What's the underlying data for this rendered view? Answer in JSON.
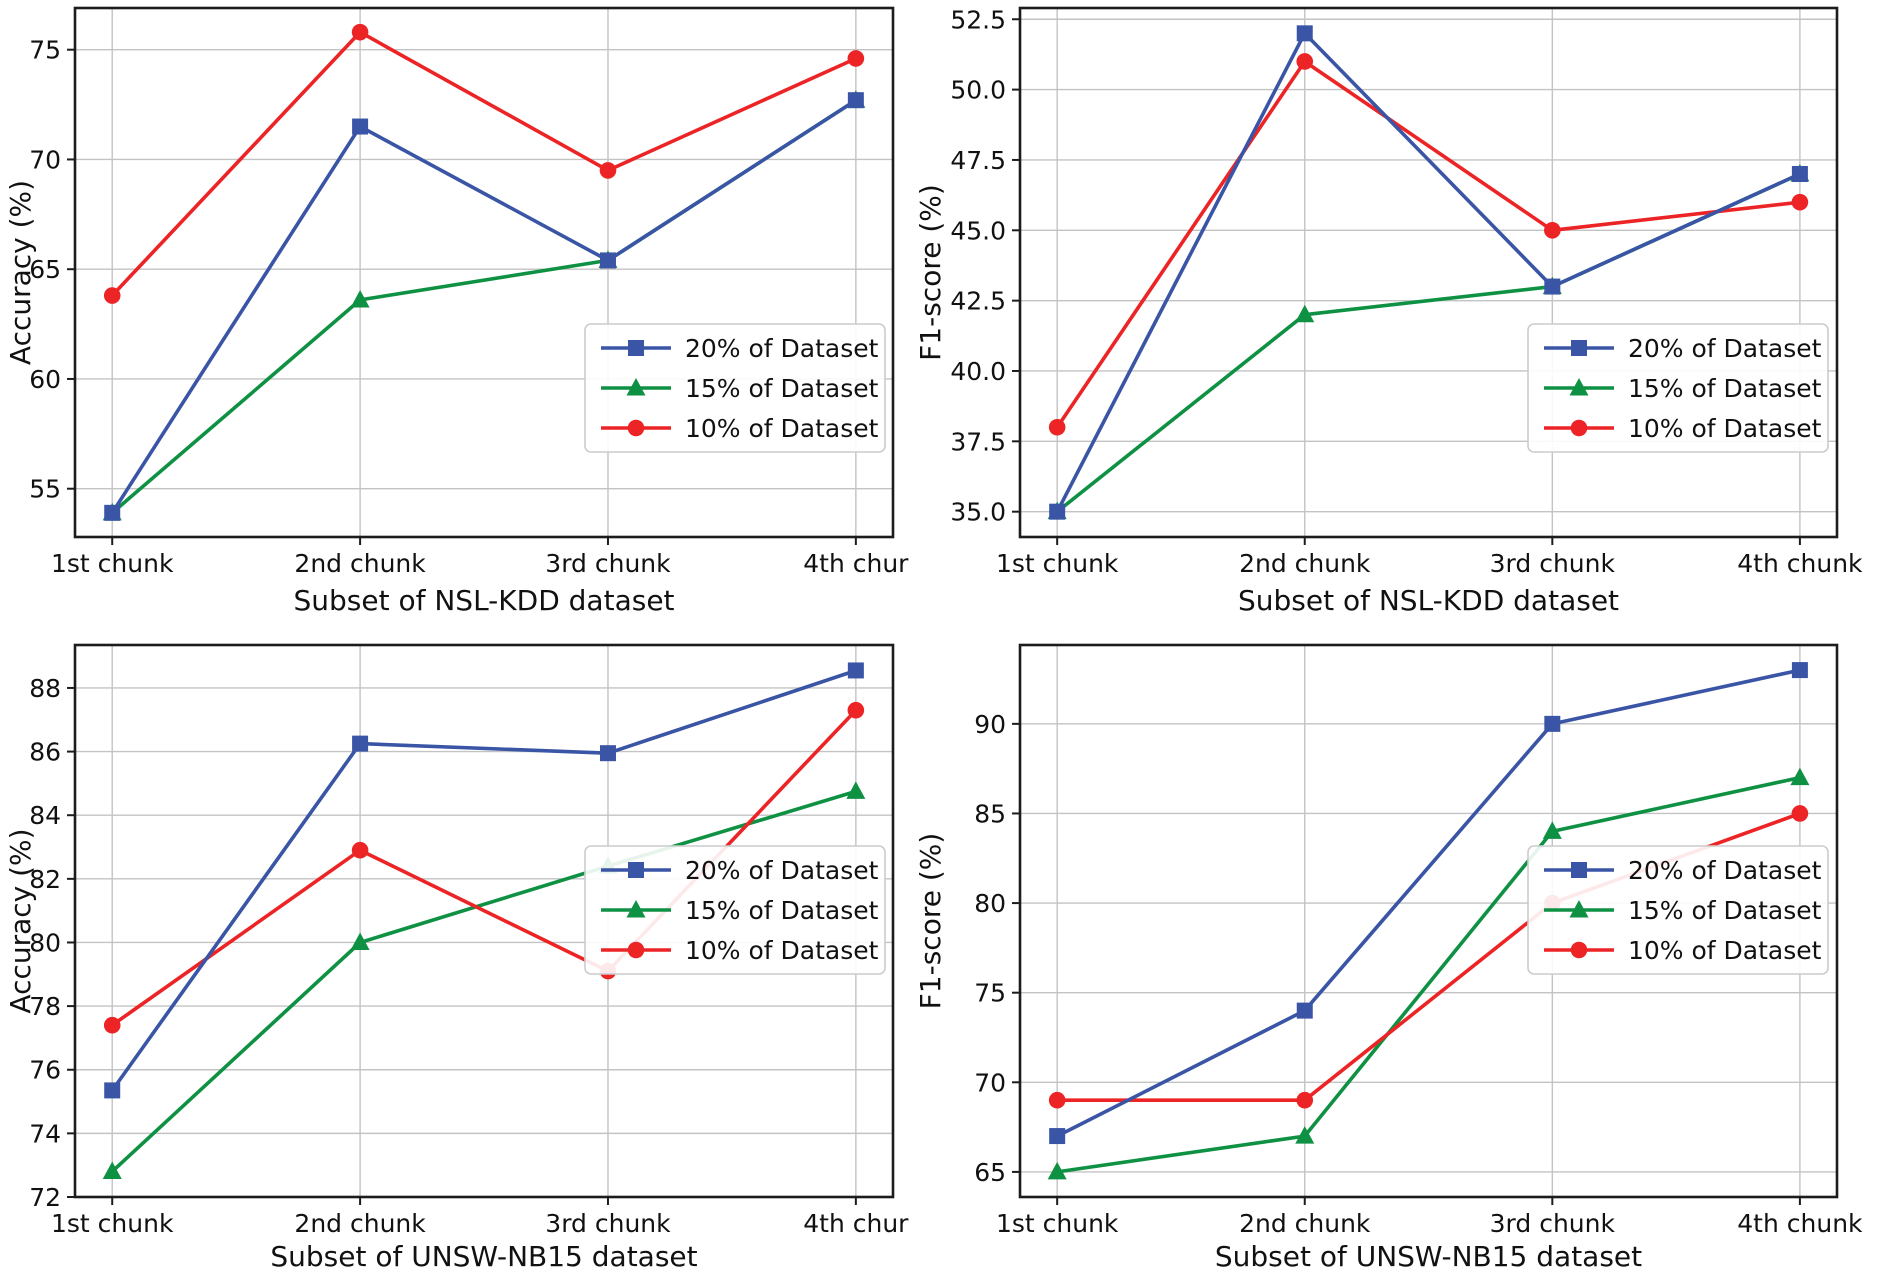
{
  "figure": {
    "background": "#ffffff",
    "text_color": "#111111",
    "grid_color": "#c3c3c3",
    "frame_color": "#1c1c1c"
  },
  "chart_data": [
    {
      "id": "nsl-kdd-accuracy",
      "type": "line",
      "title": "",
      "xlabel": "Subset of NSL-KDD dataset",
      "ylabel": "Accuracy (%)",
      "categories": [
        "1st chunk",
        "2nd chunk",
        "3rd chunk",
        "4th chur"
      ],
      "yticks": [
        55,
        60,
        65,
        70,
        75
      ],
      "ytick_labels": [
        "55",
        "60",
        "65",
        "70",
        "75"
      ],
      "ylim": [
        52.8,
        76.9
      ],
      "grid": true,
      "legend_position": "lower right",
      "draw_order": [
        1,
        2,
        0
      ],
      "series": [
        {
          "name": "20% of Dataset",
          "color": "#3a55a5",
          "marker": "square",
          "values": [
            53.9,
            71.5,
            65.4,
            72.7
          ]
        },
        {
          "name": "15% of Dataset",
          "color": "#0f9144",
          "marker": "triangle",
          "values": [
            53.9,
            63.6,
            65.4,
            72.7
          ]
        },
        {
          "name": "10% of Dataset",
          "color": "#ec2426",
          "marker": "circle",
          "values": [
            63.8,
            75.8,
            69.5,
            74.6
          ]
        }
      ]
    },
    {
      "id": "nsl-kdd-f1",
      "type": "line",
      "title": "",
      "xlabel": "Subset of NSL-KDD dataset",
      "ylabel": "F1-score (%)",
      "categories": [
        "1st chunk",
        "2nd chunk",
        "3rd chunk",
        "4th chunk"
      ],
      "yticks": [
        35.0,
        37.5,
        40.0,
        42.5,
        45.0,
        47.5,
        50.0,
        52.5
      ],
      "ytick_labels": [
        "35.0",
        "37.5",
        "40.0",
        "42.5",
        "45.0",
        "47.5",
        "50.0",
        "52.5"
      ],
      "ylim": [
        34.1,
        52.9
      ],
      "grid": true,
      "legend_position": "lower right",
      "draw_order": [
        1,
        2,
        0
      ],
      "series": [
        {
          "name": "20% of Dataset",
          "color": "#3a55a5",
          "marker": "square",
          "values": [
            35.0,
            52.0,
            43.0,
            47.0
          ]
        },
        {
          "name": "15% of Dataset",
          "color": "#0f9144",
          "marker": "triangle",
          "values": [
            35.0,
            42.0,
            43.0,
            47.0
          ]
        },
        {
          "name": "10% of Dataset",
          "color": "#ec2426",
          "marker": "circle",
          "values": [
            38.0,
            51.0,
            45.0,
            46.0
          ]
        }
      ]
    },
    {
      "id": "unsw-nb15-accuracy",
      "type": "line",
      "title": "",
      "xlabel": "Subset of UNSW-NB15 dataset",
      "ylabel": "Accuracy (%)",
      "categories": [
        "1st chunk",
        "2nd chunk",
        "3rd chunk",
        "4th chur"
      ],
      "yticks": [
        72,
        74,
        76,
        78,
        80,
        82,
        84,
        86,
        88
      ],
      "ytick_labels": [
        "72",
        "74",
        "76",
        "78",
        "80",
        "82",
        "84",
        "86",
        "88"
      ],
      "ylim": [
        72.0,
        89.35
      ],
      "grid": true,
      "legend_position": "center right",
      "draw_order": [
        1,
        2,
        0
      ],
      "series": [
        {
          "name": "20% of Dataset",
          "color": "#3a55a5",
          "marker": "square",
          "values": [
            75.35,
            86.25,
            85.95,
            88.55
          ]
        },
        {
          "name": "15% of Dataset",
          "color": "#0f9144",
          "marker": "triangle",
          "values": [
            72.8,
            80.0,
            82.4,
            84.75
          ]
        },
        {
          "name": "10% of Dataset",
          "color": "#ec2426",
          "marker": "circle",
          "values": [
            77.4,
            82.9,
            79.1,
            87.3
          ]
        }
      ]
    },
    {
      "id": "unsw-nb15-f1",
      "type": "line",
      "title": "",
      "xlabel": "Subset of UNSW-NB15 dataset",
      "ylabel": "F1-score (%)",
      "categories": [
        "1st chunk",
        "2nd chunk",
        "3rd chunk",
        "4th chunk"
      ],
      "yticks": [
        65,
        70,
        75,
        80,
        85,
        90
      ],
      "ytick_labels": [
        "65",
        "70",
        "75",
        "80",
        "85",
        "90"
      ],
      "ylim": [
        63.6,
        94.4
      ],
      "grid": true,
      "legend_position": "center right",
      "draw_order": [
        1,
        2,
        0
      ],
      "series": [
        {
          "name": "20% of Dataset",
          "color": "#3a55a5",
          "marker": "square",
          "values": [
            67.0,
            74.0,
            90.0,
            93.0
          ]
        },
        {
          "name": "15% of Dataset",
          "color": "#0f9144",
          "marker": "triangle",
          "values": [
            65.0,
            67.0,
            84.0,
            87.0
          ]
        },
        {
          "name": "10% of Dataset",
          "color": "#ec2426",
          "marker": "circle",
          "values": [
            69.0,
            69.0,
            80.0,
            85.0
          ]
        }
      ]
    }
  ]
}
